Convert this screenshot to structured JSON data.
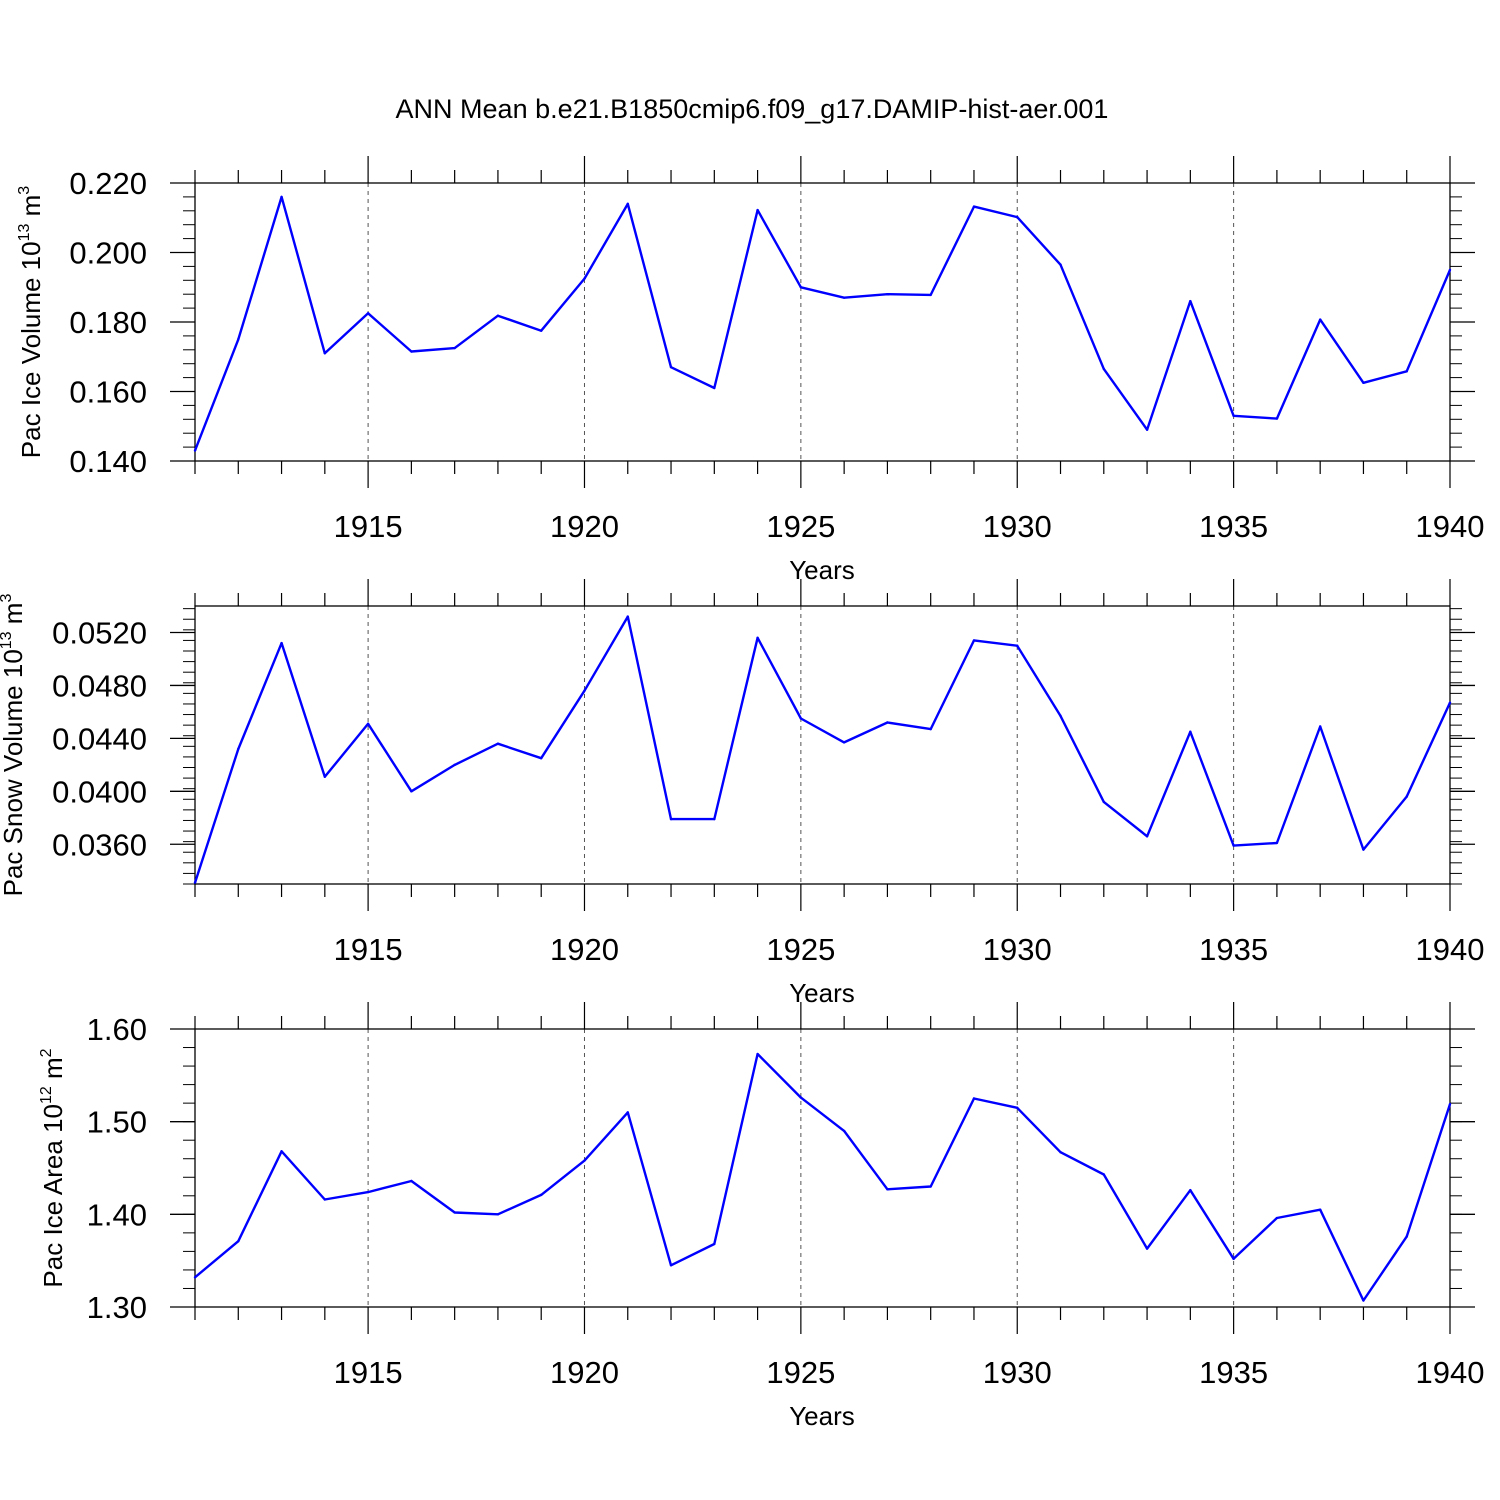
{
  "figure_title": "ANN Mean b.e21.B1850cmip6.f09_g17.DAMIP-hist-aer.001",
  "line_color": "#0000ff",
  "chart_data": [
    {
      "type": "line",
      "ylabel_main": "Pac Ice Volume 10",
      "ylabel_exp": "13",
      "ylabel_unit": "m",
      "ylabel_unit_exp": "3",
      "xlabel": "Years",
      "xlim": [
        1911,
        1940
      ],
      "ylim": [
        0.14,
        0.22
      ],
      "yticks": [
        0.14,
        0.16,
        0.18,
        0.2,
        0.22
      ],
      "ytick_labels": [
        "0.140",
        "0.160",
        "0.180",
        "0.200",
        "0.220"
      ],
      "xticks": [
        1915,
        1920,
        1925,
        1930,
        1935,
        1940
      ],
      "xtick_labels": [
        "1915",
        "1920",
        "1925",
        "1930",
        "1935",
        "1940"
      ],
      "x": [
        1911,
        1912,
        1913,
        1914,
        1915,
        1916,
        1917,
        1918,
        1919,
        1920,
        1921,
        1922,
        1923,
        1924,
        1925,
        1926,
        1927,
        1928,
        1929,
        1930,
        1931,
        1932,
        1933,
        1934,
        1935,
        1936,
        1937,
        1938,
        1939,
        1940
      ],
      "values": [
        0.143,
        0.175,
        0.216,
        0.171,
        0.1825,
        0.1715,
        0.1725,
        0.1818,
        0.1775,
        0.1925,
        0.214,
        0.167,
        0.161,
        0.2122,
        0.19,
        0.187,
        0.188,
        0.1878,
        0.2132,
        0.2102,
        0.1965,
        0.1665,
        0.149,
        0.186,
        0.153,
        0.1522,
        0.1807,
        0.1625,
        0.1658,
        0.195
      ]
    },
    {
      "type": "line",
      "ylabel_main": "Pac Snow Volume 10",
      "ylabel_exp": "13",
      "ylabel_unit": "m",
      "ylabel_unit_exp": "3",
      "xlabel": "Years",
      "xlim": [
        1911,
        1940
      ],
      "ylim": [
        0.033,
        0.054
      ],
      "yticks": [
        0.036,
        0.04,
        0.044,
        0.048,
        0.052
      ],
      "ytick_labels": [
        "0.0360",
        "0.0400",
        "0.0440",
        "0.0480",
        "0.0520"
      ],
      "xticks": [
        1915,
        1920,
        1925,
        1930,
        1935,
        1940
      ],
      "xtick_labels": [
        "1915",
        "1920",
        "1925",
        "1930",
        "1935",
        "1940"
      ],
      "x": [
        1911,
        1912,
        1913,
        1914,
        1915,
        1916,
        1917,
        1918,
        1919,
        1920,
        1921,
        1922,
        1923,
        1924,
        1925,
        1926,
        1927,
        1928,
        1929,
        1930,
        1931,
        1932,
        1933,
        1934,
        1935,
        1936,
        1937,
        1938,
        1939,
        1940
      ],
      "values": [
        0.0331,
        0.0432,
        0.0512,
        0.0411,
        0.0451,
        0.04,
        0.042,
        0.0436,
        0.0425,
        0.0476,
        0.0532,
        0.0379,
        0.0379,
        0.0516,
        0.0455,
        0.0437,
        0.0452,
        0.0447,
        0.0514,
        0.051,
        0.0457,
        0.0392,
        0.0366,
        0.0445,
        0.0359,
        0.0361,
        0.0449,
        0.0356,
        0.0396,
        0.0467
      ]
    },
    {
      "type": "line",
      "ylabel_main": "Pac Ice Area 10",
      "ylabel_exp": "12",
      "ylabel_unit": "m",
      "ylabel_unit_exp": "2",
      "xlabel": "Years",
      "xlim": [
        1911,
        1940
      ],
      "ylim": [
        1.3,
        1.6
      ],
      "yticks": [
        1.3,
        1.4,
        1.5,
        1.6
      ],
      "ytick_labels": [
        "1.30",
        "1.40",
        "1.50",
        "1.60"
      ],
      "xticks": [
        1915,
        1920,
        1925,
        1930,
        1935,
        1940
      ],
      "xtick_labels": [
        "1915",
        "1920",
        "1925",
        "1930",
        "1935",
        "1940"
      ],
      "x": [
        1911,
        1912,
        1913,
        1914,
        1915,
        1916,
        1917,
        1918,
        1919,
        1920,
        1921,
        1922,
        1923,
        1924,
        1925,
        1926,
        1927,
        1928,
        1929,
        1930,
        1931,
        1932,
        1933,
        1934,
        1935,
        1936,
        1937,
        1938,
        1939,
        1940
      ],
      "values": [
        1.332,
        1.371,
        1.468,
        1.416,
        1.424,
        1.436,
        1.402,
        1.4,
        1.421,
        1.458,
        1.51,
        1.345,
        1.368,
        1.573,
        1.526,
        1.49,
        1.427,
        1.43,
        1.525,
        1.515,
        1.467,
        1.443,
        1.363,
        1.426,
        1.352,
        1.396,
        1.405,
        1.307,
        1.376,
        1.519
      ]
    }
  ]
}
